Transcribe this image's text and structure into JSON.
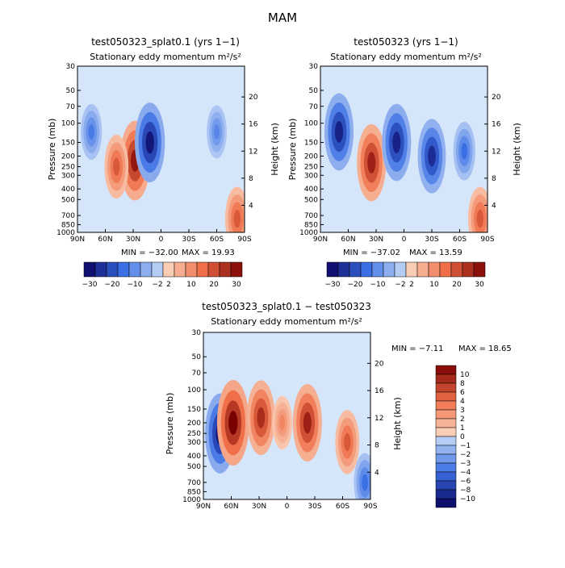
{
  "page_title": "MAM",
  "y_ticks": [
    "30",
    "50",
    "70",
    "100",
    "150",
    "200",
    "250",
    "300",
    "400",
    "500",
    "700",
    "850",
    "1000"
  ],
  "x_ticks": [
    "90N",
    "60N",
    "30N",
    "0",
    "30S",
    "60S",
    "90S"
  ],
  "height_ticks": [
    "20",
    "16",
    "12",
    "8",
    "4"
  ],
  "colors": {
    "neg_dark": "#08005e",
    "neg_mid": "#3b6fe4",
    "neg_light": "#c8dcf7",
    "pos_light": "#fbdcc6",
    "pos_mid": "#ef6f49",
    "pos_dark": "#7a0000",
    "neutral": "#d6e6fa"
  },
  "chart_data": [
    {
      "type": "contour",
      "title": "test050323_splat0.1 (yrs 1−1)",
      "subtitle": "Stationary eddy momentum  m²/s²",
      "ylabel": "Pressure (mb)",
      "ylabel_right": "Height (km)",
      "min_label": "MIN = −32.00",
      "max_label": "MAX =  19.93",
      "min": -32.0,
      "max": 19.93,
      "colorbar_levels": [
        "−30",
        "−20",
        "−10",
        "−2",
        "2",
        "10",
        "20",
        "30"
      ],
      "features": [
        {
          "lat": 28,
          "p": 220,
          "sign": 1,
          "strength": 0.9
        },
        {
          "lat": 48,
          "p": 250,
          "sign": 1,
          "strength": 0.6
        },
        {
          "lat": 12,
          "p": 150,
          "sign": -1,
          "strength": 0.9
        },
        {
          "lat": 75,
          "p": 120,
          "sign": -1,
          "strength": 0.45
        },
        {
          "lat": -60,
          "p": 120,
          "sign": -1,
          "strength": 0.4
        },
        {
          "lat": -82,
          "p": 750,
          "sign": 1,
          "strength": 0.6
        }
      ]
    },
    {
      "type": "contour",
      "title": "test050323 (yrs 1−1)",
      "subtitle": "Stationary eddy momentum  m²/s²",
      "ylabel": "Pressure (mb)",
      "ylabel_right": "Height (km)",
      "min_label": "MIN = −37.02",
      "max_label": "MAX =  13.59",
      "min": -37.02,
      "max": 13.59,
      "colorbar_levels": [
        "−30",
        "−20",
        "−10",
        "−2",
        "2",
        "10",
        "20",
        "30"
      ],
      "features": [
        {
          "lat": 70,
          "p": 120,
          "sign": -1,
          "strength": 0.85
        },
        {
          "lat": 35,
          "p": 230,
          "sign": 1,
          "strength": 0.85
        },
        {
          "lat": 8,
          "p": 150,
          "sign": -1,
          "strength": 0.85
        },
        {
          "lat": -30,
          "p": 200,
          "sign": -1,
          "strength": 0.8
        },
        {
          "lat": -65,
          "p": 180,
          "sign": -1,
          "strength": 0.5
        },
        {
          "lat": -82,
          "p": 750,
          "sign": 1,
          "strength": 0.6
        }
      ]
    },
    {
      "type": "contour",
      "title": "test050323_splat0.1 − test050323",
      "subtitle": "Stationary eddy momentum  m²/s²",
      "ylabel": "Pressure (mb)",
      "ylabel_right": "Height (km)",
      "min_label": "MIN =   −7.11",
      "max_label": "MAX =  18.65",
      "min": -7.11,
      "max": 18.65,
      "colorbar_levels": [
        "10",
        "8",
        "6",
        "4",
        "3",
        "2",
        "1",
        "0",
        "−1",
        "−2",
        "−3",
        "−4",
        "−6",
        "−8",
        "−10"
      ],
      "features": [
        {
          "lat": 72,
          "p": 250,
          "sign": -1,
          "strength": 0.9
        },
        {
          "lat": 58,
          "p": 200,
          "sign": 1,
          "strength": 1.0
        },
        {
          "lat": 28,
          "p": 180,
          "sign": 1,
          "strength": 0.8
        },
        {
          "lat": 5,
          "p": 200,
          "sign": 1,
          "strength": 0.4
        },
        {
          "lat": -22,
          "p": 200,
          "sign": 1,
          "strength": 0.85
        },
        {
          "lat": -65,
          "p": 300,
          "sign": 1,
          "strength": 0.6
        },
        {
          "lat": -84,
          "p": 700,
          "sign": -1,
          "strength": 0.5
        }
      ]
    }
  ]
}
